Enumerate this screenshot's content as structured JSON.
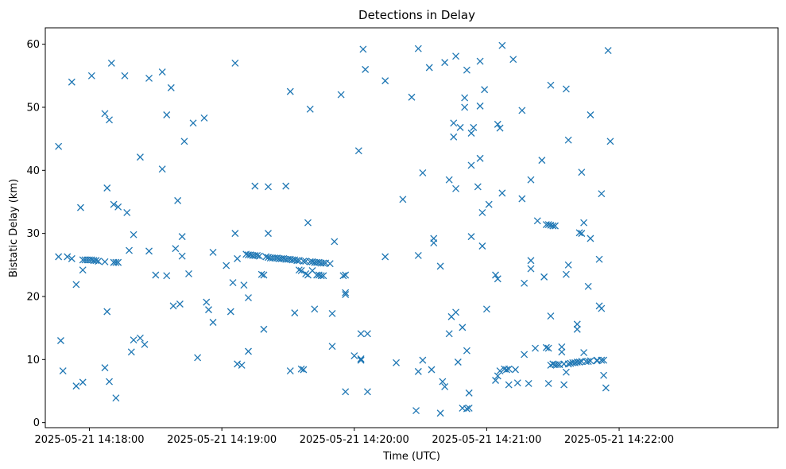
{
  "chart_data": {
    "type": "scatter",
    "title": "Detections in Delay",
    "xlabel": "Time (UTC)",
    "ylabel": "Bistatic Delay (km)",
    "marker": "x",
    "color": "#1f77b4",
    "grid": false,
    "x_tick_labels": [
      "2025-05-21 14:18:00",
      "2025-05-21 14:19:00",
      "2025-05-21 14:20:00",
      "2025-05-21 14:21:00",
      "2025-05-21 14:22:00"
    ],
    "x_tick_seconds": [
      60,
      120,
      180,
      240,
      300
    ],
    "xlim_seconds": [
      40,
      372
    ],
    "y_ticks": [
      "0",
      "10",
      "20",
      "30",
      "40",
      "50",
      "60"
    ],
    "ylim": [
      -0.8,
      62.6
    ],
    "x_origin": "2025-05-21 14:17:00",
    "points": [
      [
        46,
        43.8
      ],
      [
        46,
        26.3
      ],
      [
        47,
        13
      ],
      [
        48,
        8.2
      ],
      [
        50,
        26.3
      ],
      [
        52,
        54
      ],
      [
        52,
        26
      ],
      [
        54,
        21.9
      ],
      [
        54,
        5.8
      ],
      [
        56,
        34.1
      ],
      [
        57,
        25.8
      ],
      [
        57,
        24.2
      ],
      [
        57,
        6.4
      ],
      [
        58,
        25.8
      ],
      [
        59,
        25.8
      ],
      [
        60,
        25.8
      ],
      [
        61,
        55
      ],
      [
        61,
        25.8
      ],
      [
        62,
        25.7
      ],
      [
        63,
        25.7
      ],
      [
        64,
        25.6
      ],
      [
        67,
        25.5
      ],
      [
        67,
        49
      ],
      [
        67,
        8.7
      ],
      [
        68,
        37.2
      ],
      [
        68,
        17.6
      ],
      [
        69,
        48
      ],
      [
        69,
        6.5
      ],
      [
        70,
        57
      ],
      [
        71,
        34.6
      ],
      [
        71,
        25.4
      ],
      [
        72,
        25.4
      ],
      [
        72,
        3.9
      ],
      [
        73,
        34.2
      ],
      [
        73,
        25.4
      ],
      [
        76,
        55
      ],
      [
        77,
        33.3
      ],
      [
        78,
        27.3
      ],
      [
        79,
        11.2
      ],
      [
        80,
        29.8
      ],
      [
        80,
        13.1
      ],
      [
        83,
        13.4
      ],
      [
        83,
        42.1
      ],
      [
        85,
        12.4
      ],
      [
        87,
        54.6
      ],
      [
        87,
        27.2
      ],
      [
        90,
        23.4
      ],
      [
        93,
        55.6
      ],
      [
        93,
        40.2
      ],
      [
        95,
        48.8
      ],
      [
        95,
        23.3
      ],
      [
        97,
        53.1
      ],
      [
        98,
        18.5
      ],
      [
        99,
        27.6
      ],
      [
        100,
        35.2
      ],
      [
        101,
        18.8
      ],
      [
        102,
        29.5
      ],
      [
        102,
        26.4
      ],
      [
        103,
        44.6
      ],
      [
        105,
        23.6
      ],
      [
        107,
        47.5
      ],
      [
        109,
        10.3
      ],
      [
        112,
        48.3
      ],
      [
        113,
        19.1
      ],
      [
        114,
        17.9
      ],
      [
        116,
        27
      ],
      [
        116,
        15.9
      ],
      [
        122,
        24.9
      ],
      [
        124,
        17.6
      ],
      [
        125,
        22.2
      ],
      [
        126,
        57
      ],
      [
        126,
        30
      ],
      [
        127,
        26
      ],
      [
        127,
        9.3
      ],
      [
        129,
        9.1
      ],
      [
        130,
        21.8
      ],
      [
        131,
        26.7
      ],
      [
        132,
        26.6
      ],
      [
        132,
        19.8
      ],
      [
        132,
        11.3
      ],
      [
        133,
        26.6
      ],
      [
        134,
        26.5
      ],
      [
        135,
        26.5
      ],
      [
        135,
        37.5
      ],
      [
        136,
        26.5
      ],
      [
        137,
        26.4
      ],
      [
        138,
        23.5
      ],
      [
        139,
        23.4
      ],
      [
        139,
        14.8
      ],
      [
        140,
        26.3
      ],
      [
        141,
        26.2
      ],
      [
        141,
        30
      ],
      [
        141,
        37.4
      ],
      [
        142,
        26.1
      ],
      [
        143,
        26.1
      ],
      [
        144,
        26.1
      ],
      [
        145,
        26.1
      ],
      [
        146,
        26
      ],
      [
        147,
        26
      ],
      [
        148,
        26
      ],
      [
        149,
        37.5
      ],
      [
        149,
        25.9
      ],
      [
        150,
        25.9
      ],
      [
        151,
        25.9
      ],
      [
        151,
        52.5
      ],
      [
        151,
        8.2
      ],
      [
        152,
        25.8
      ],
      [
        153,
        25.8
      ],
      [
        153,
        17.4
      ],
      [
        154,
        25.7
      ],
      [
        155,
        25.7
      ],
      [
        155,
        24.2
      ],
      [
        156,
        8.5
      ],
      [
        156,
        24.1
      ],
      [
        157,
        8.4
      ],
      [
        157,
        25.6
      ],
      [
        158,
        25.6
      ],
      [
        158,
        23.6
      ],
      [
        159,
        31.7
      ],
      [
        159,
        23.4
      ],
      [
        160,
        49.7
      ],
      [
        160,
        25.5
      ],
      [
        161,
        25.5
      ],
      [
        161,
        24.1
      ],
      [
        162,
        25.4
      ],
      [
        162,
        18
      ],
      [
        163,
        25.4
      ],
      [
        163,
        23.4
      ],
      [
        164,
        25.4
      ],
      [
        164,
        23.4
      ],
      [
        165,
        25.3
      ],
      [
        165,
        23.3
      ],
      [
        166,
        25.3
      ],
      [
        166,
        23.3
      ],
      [
        167,
        25.3
      ],
      [
        169,
        25.2
      ],
      [
        170,
        17.3
      ],
      [
        170,
        12.1
      ],
      [
        171,
        28.7
      ],
      [
        174,
        52
      ],
      [
        175,
        23.3
      ],
      [
        176,
        20.6
      ],
      [
        176,
        20.3
      ],
      [
        176,
        23.4
      ],
      [
        176,
        4.9
      ],
      [
        180,
        10.6
      ],
      [
        182,
        43.1
      ],
      [
        183,
        14.1
      ],
      [
        183,
        10.1
      ],
      [
        183,
        9.9
      ],
      [
        184,
        59.2
      ],
      [
        185,
        56
      ],
      [
        186,
        14.1
      ],
      [
        186,
        4.9
      ],
      [
        194,
        26.3
      ],
      [
        194,
        54.2
      ],
      [
        199,
        9.5
      ],
      [
        202,
        35.4
      ],
      [
        206,
        51.6
      ],
      [
        208,
        1.9
      ],
      [
        209,
        59.3
      ],
      [
        209,
        26.5
      ],
      [
        209,
        8.1
      ],
      [
        211,
        39.6
      ],
      [
        211,
        9.9
      ],
      [
        214,
        56.3
      ],
      [
        215,
        8.4
      ],
      [
        216,
        29.2
      ],
      [
        216,
        28.5
      ],
      [
        219,
        24.8
      ],
      [
        219,
        1.5
      ],
      [
        220,
        6.5
      ],
      [
        221,
        57.1
      ],
      [
        221,
        5.7
      ],
      [
        223,
        38.5
      ],
      [
        223,
        14.1
      ],
      [
        224,
        16.8
      ],
      [
        225,
        47.5
      ],
      [
        225,
        45.3
      ],
      [
        226,
        58.1
      ],
      [
        226,
        37.1
      ],
      [
        226,
        17.5
      ],
      [
        227,
        9.6
      ],
      [
        228,
        46.8
      ],
      [
        229,
        15.1
      ],
      [
        229,
        2.3
      ],
      [
        230,
        51.5
      ],
      [
        230,
        50
      ],
      [
        231,
        55.9
      ],
      [
        231,
        11.4
      ],
      [
        231,
        2.2
      ],
      [
        232,
        4.7
      ],
      [
        232,
        2.3
      ],
      [
        233,
        45.9
      ],
      [
        233,
        40.8
      ],
      [
        233,
        29.5
      ],
      [
        234,
        46.8
      ],
      [
        236,
        37.4
      ],
      [
        237,
        50.2
      ],
      [
        237,
        41.9
      ],
      [
        237,
        57.3
      ],
      [
        238,
        28
      ],
      [
        238,
        33.3
      ],
      [
        239,
        52.8
      ],
      [
        240,
        18
      ],
      [
        241,
        34.6
      ],
      [
        244,
        23.4
      ],
      [
        244,
        6.7
      ],
      [
        245,
        22.8
      ],
      [
        245,
        47.3
      ],
      [
        245,
        7.4
      ],
      [
        246,
        46.7
      ],
      [
        246,
        8.2
      ],
      [
        247,
        59.8
      ],
      [
        247,
        36.4
      ],
      [
        248,
        8.5
      ],
      [
        249,
        8.4
      ],
      [
        250,
        8.5
      ],
      [
        250,
        6
      ],
      [
        252,
        57.6
      ],
      [
        253,
        8.4
      ],
      [
        254,
        6.3
      ],
      [
        256,
        49.5
      ],
      [
        256,
        35.5
      ],
      [
        257,
        22.1
      ],
      [
        257,
        10.8
      ],
      [
        259,
        6.2
      ],
      [
        260,
        38.5
      ],
      [
        260,
        25.7
      ],
      [
        260,
        24.4
      ],
      [
        262,
        11.8
      ],
      [
        263,
        32
      ],
      [
        265,
        41.6
      ],
      [
        266,
        23.1
      ],
      [
        267,
        31.4
      ],
      [
        267,
        11.9
      ],
      [
        268,
        11.8
      ],
      [
        268,
        31.4
      ],
      [
        268,
        6.2
      ],
      [
        269,
        31.3
      ],
      [
        269,
        9.1
      ],
      [
        269,
        53.5
      ],
      [
        269,
        16.9
      ],
      [
        270,
        31.2
      ],
      [
        270,
        9.3
      ],
      [
        271,
        31.2
      ],
      [
        271,
        9.2
      ],
      [
        272,
        9.2
      ],
      [
        273,
        9.2
      ],
      [
        274,
        12
      ],
      [
        274,
        11.2
      ],
      [
        275,
        9.3
      ],
      [
        275,
        6
      ],
      [
        276,
        52.9
      ],
      [
        276,
        23.5
      ],
      [
        276,
        8
      ],
      [
        277,
        44.8
      ],
      [
        277,
        25
      ],
      [
        277,
        9.3
      ],
      [
        278,
        9.4
      ],
      [
        279,
        9.5
      ],
      [
        280,
        9.5
      ],
      [
        281,
        9.6
      ],
      [
        281,
        15.6
      ],
      [
        281,
        14.8
      ],
      [
        282,
        9.6
      ],
      [
        282,
        30.1
      ],
      [
        283,
        9.7
      ],
      [
        283,
        39.7
      ],
      [
        283,
        30
      ],
      [
        284,
        31.7
      ],
      [
        284,
        11.1
      ],
      [
        285,
        9.7
      ],
      [
        286,
        9.7
      ],
      [
        286,
        21.6
      ],
      [
        287,
        48.8
      ],
      [
        287,
        29.2
      ],
      [
        287,
        9.8
      ],
      [
        290,
        9.8
      ],
      [
        290,
        9.9
      ],
      [
        291,
        25.9
      ],
      [
        291,
        18.5
      ],
      [
        292,
        9.9
      ],
      [
        292,
        36.3
      ],
      [
        292,
        18.1
      ],
      [
        293,
        9.9
      ],
      [
        293,
        7.5
      ],
      [
        294,
        5.5
      ],
      [
        295,
        59
      ],
      [
        296,
        44.6
      ]
    ]
  }
}
